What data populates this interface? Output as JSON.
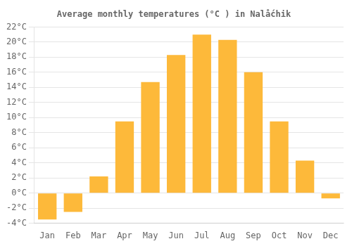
{
  "chart_data": {
    "type": "bar",
    "title": "Average monthly temperatures (°C ) in Nalǻchik",
    "categories": [
      "Jan",
      "Feb",
      "Mar",
      "Apr",
      "May",
      "Jun",
      "Jul",
      "Aug",
      "Sep",
      "Oct",
      "Nov",
      "Dec"
    ],
    "values": [
      -3.5,
      -2.5,
      2.2,
      9.5,
      14.7,
      18.3,
      21.0,
      20.3,
      16.0,
      9.5,
      4.3,
      -0.7
    ],
    "color": "#FDB93A",
    "ylim": [
      -4,
      22
    ],
    "yticks": [
      {
        "value": -4,
        "label": "-4°C"
      },
      {
        "value": -2,
        "label": "-2°C"
      },
      {
        "value": 0,
        "label": "0°C"
      },
      {
        "value": 2,
        "label": "2°C"
      },
      {
        "value": 4,
        "label": "4°C"
      },
      {
        "value": 6,
        "label": "6°C"
      },
      {
        "value": 8,
        "label": "8°C"
      },
      {
        "value": 10,
        "label": "10°C"
      },
      {
        "value": 12,
        "label": "12°C"
      },
      {
        "value": 14,
        "label": "14°C"
      },
      {
        "value": 16,
        "label": "16°C"
      },
      {
        "value": 18,
        "label": "18°C"
      },
      {
        "value": 20,
        "label": "20°C"
      },
      {
        "value": 22,
        "label": "22°C"
      }
    ],
    "grid": true
  }
}
